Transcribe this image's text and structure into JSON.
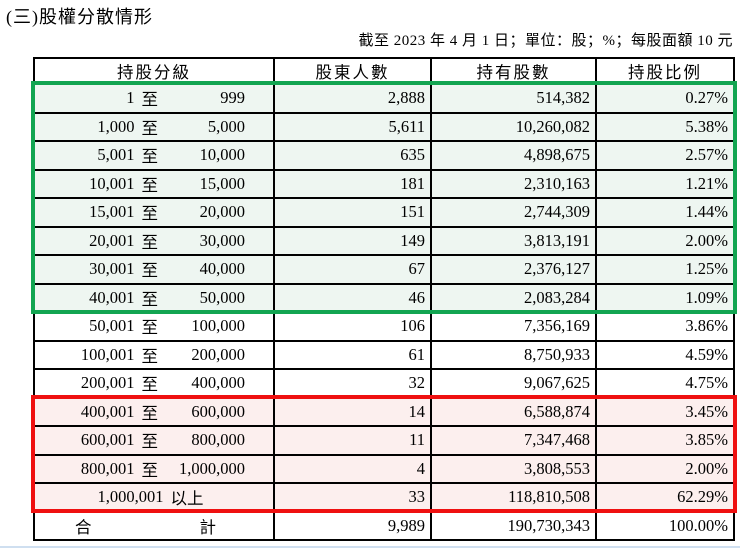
{
  "document": {
    "title": "(三)股權分散情形",
    "subtitle": "截至 2023 年 4 月 1 日；單位：股；%；每股面額 10 元"
  },
  "table": {
    "columns": [
      "持股分級",
      "股東人數",
      "持有股數",
      "持股比例"
    ],
    "rows": [
      {
        "from": "1",
        "sep": "至",
        "to": "999",
        "holders": "2,888",
        "shares": "514,382",
        "ratio": "0.27%",
        "group": "green"
      },
      {
        "from": "1,000",
        "sep": "至",
        "to": "5,000",
        "holders": "5,611",
        "shares": "10,260,082",
        "ratio": "5.38%",
        "group": "green"
      },
      {
        "from": "5,001",
        "sep": "至",
        "to": "10,000",
        "holders": "635",
        "shares": "4,898,675",
        "ratio": "2.57%",
        "group": "green"
      },
      {
        "from": "10,001",
        "sep": "至",
        "to": "15,000",
        "holders": "181",
        "shares": "2,310,163",
        "ratio": "1.21%",
        "group": "green"
      },
      {
        "from": "15,001",
        "sep": "至",
        "to": "20,000",
        "holders": "151",
        "shares": "2,744,309",
        "ratio": "1.44%",
        "group": "green"
      },
      {
        "from": "20,001",
        "sep": "至",
        "to": "30,000",
        "holders": "149",
        "shares": "3,813,191",
        "ratio": "2.00%",
        "group": "green"
      },
      {
        "from": "30,001",
        "sep": "至",
        "to": "40,000",
        "holders": "67",
        "shares": "2,376,127",
        "ratio": "1.25%",
        "group": "green"
      },
      {
        "from": "40,001",
        "sep": "至",
        "to": "50,000",
        "holders": "46",
        "shares": "2,083,284",
        "ratio": "1.09%",
        "group": "green"
      },
      {
        "from": "50,001",
        "sep": "至",
        "to": "100,000",
        "holders": "106",
        "shares": "7,356,169",
        "ratio": "3.86%",
        "group": "none"
      },
      {
        "from": "100,001",
        "sep": "至",
        "to": "200,000",
        "holders": "61",
        "shares": "8,750,933",
        "ratio": "4.59%",
        "group": "none"
      },
      {
        "from": "200,001",
        "sep": "至",
        "to": "400,000",
        "holders": "32",
        "shares": "9,067,625",
        "ratio": "4.75%",
        "group": "none"
      },
      {
        "from": "400,001",
        "sep": "至",
        "to": "600,000",
        "holders": "14",
        "shares": "6,588,874",
        "ratio": "3.45%",
        "group": "red"
      },
      {
        "from": "600,001",
        "sep": "至",
        "to": "800,000",
        "holders": "11",
        "shares": "7,347,468",
        "ratio": "3.85%",
        "group": "red"
      },
      {
        "from": "800,001",
        "sep": "至",
        "to": "1,000,000",
        "holders": "4",
        "shares": "3,808,553",
        "ratio": "2.00%",
        "group": "red"
      },
      {
        "from": "1,000,001",
        "sep": "以上",
        "to": "",
        "holders": "33",
        "shares": "118,810,508",
        "ratio": "62.29%",
        "group": "red"
      }
    ],
    "total": {
      "label_left": "合",
      "label_right": "計",
      "holders": "9,989",
      "shares": "190,730,343",
      "ratio": "100.00%"
    }
  },
  "colors": {
    "green_border": "#12a551",
    "green_bg": "#eef6f1",
    "red_border": "#ef1010",
    "red_bg": "#fcefee",
    "grid": "#000000",
    "page_background": "#ffffff"
  }
}
